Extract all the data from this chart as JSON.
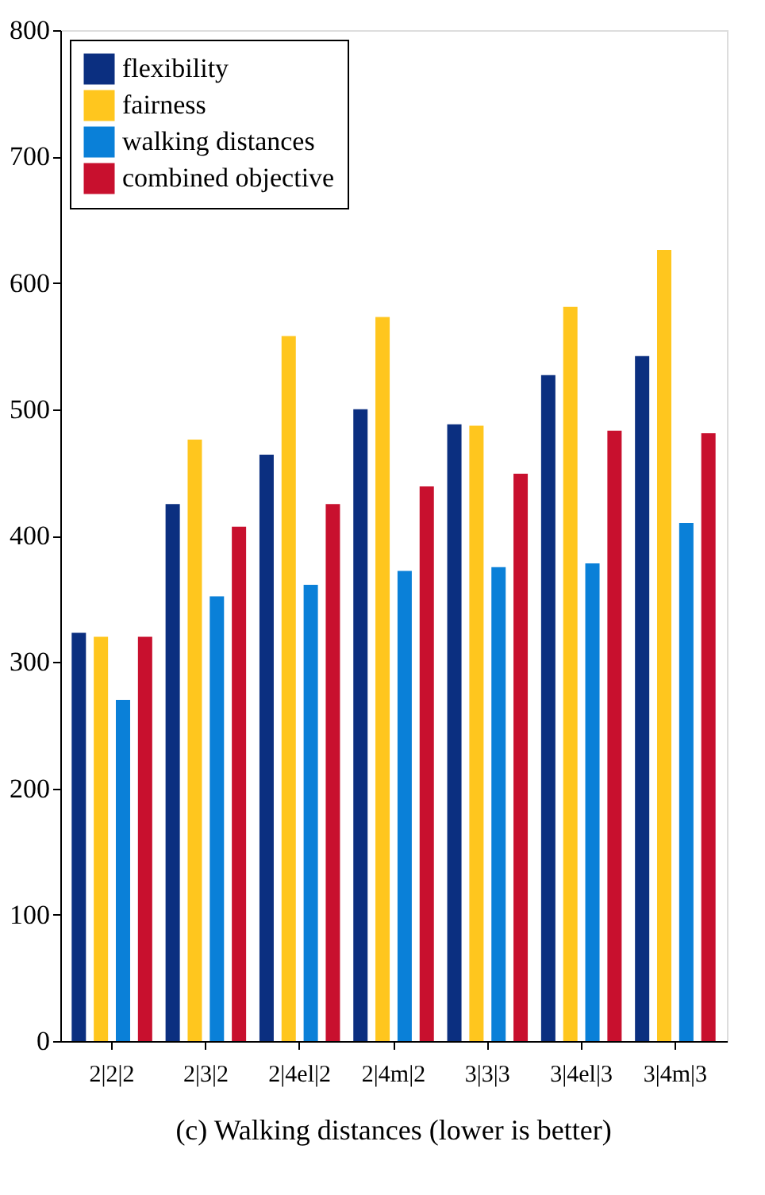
{
  "chart_data": {
    "type": "bar",
    "title": "(c) Walking distances (lower is better)",
    "categories": [
      "2|2|2",
      "2|3|2",
      "2|4el|2",
      "2|4m|2",
      "3|3|3",
      "3|4el|3",
      "3|4m|3"
    ],
    "series": [
      {
        "name": "flexibility",
        "color": "#0b2f80",
        "values": [
          323,
          425,
          464,
          500,
          488,
          527,
          542
        ]
      },
      {
        "name": "fairness",
        "color": "#ffc61e",
        "values": [
          320,
          476,
          558,
          573,
          487,
          581,
          626
        ]
      },
      {
        "name": "walking distances",
        "color": "#0a80d8",
        "values": [
          270,
          352,
          361,
          372,
          375,
          378,
          410
        ]
      },
      {
        "name": "combined objective",
        "color": "#c8102e",
        "values": [
          320,
          407,
          425,
          439,
          449,
          483,
          481
        ]
      }
    ],
    "ylim": [
      0,
      800
    ],
    "yticks": [
      0,
      100,
      200,
      300,
      400,
      500,
      600,
      700,
      800
    ],
    "grid": false,
    "legend": "top left"
  }
}
